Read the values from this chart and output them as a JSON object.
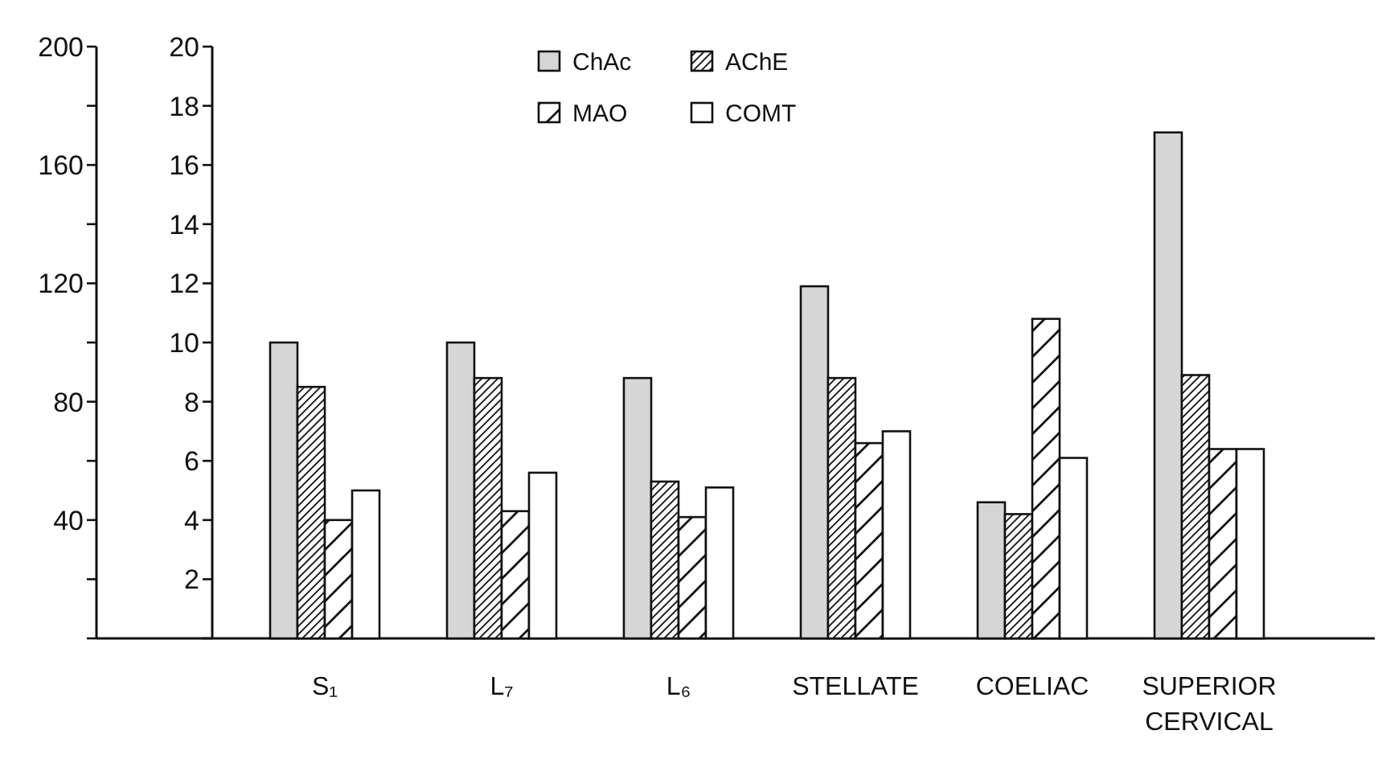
{
  "chart_data": {
    "type": "bar",
    "categories": [
      "S₁",
      "L₇",
      "L₆",
      "STELLATE",
      "COELIAC",
      "SUPERIOR CERVICAL"
    ],
    "series": [
      {
        "name": "ChAc",
        "color": "#d6d6d6",
        "values": [
          10,
          10,
          8.8,
          11.9,
          4.6,
          17.1
        ]
      },
      {
        "name": "AChE",
        "color": "#111111",
        "values": [
          8.5,
          8.8,
          5.3,
          8.8,
          4.2,
          8.9
        ]
      },
      {
        "name": "MAO",
        "color": "#111111",
        "values": [
          4.0,
          4.3,
          4.1,
          6.6,
          10.8,
          6.4
        ]
      },
      {
        "name": "COMT",
        "color": "#ffffff",
        "values": [
          5.0,
          5.6,
          5.1,
          7.0,
          6.1,
          6.4
        ]
      }
    ],
    "ylim": [
      0,
      20
    ],
    "yticks": [
      {
        "value": 0,
        "label": null
      },
      2,
      4,
      6,
      8,
      10,
      12,
      14,
      16,
      18,
      20
    ],
    "y2lim": [
      0,
      200
    ],
    "y2ticks": [
      {
        "value": 0,
        "label": null
      },
      {
        "value": 20,
        "label": null
      },
      40,
      {
        "value": 60,
        "label": null
      },
      80,
      {
        "value": 100,
        "label": null
      },
      120,
      {
        "value": 140,
        "label": null
      },
      160,
      {
        "value": 180,
        "label": null
      },
      200
    ],
    "legend": "top"
  }
}
